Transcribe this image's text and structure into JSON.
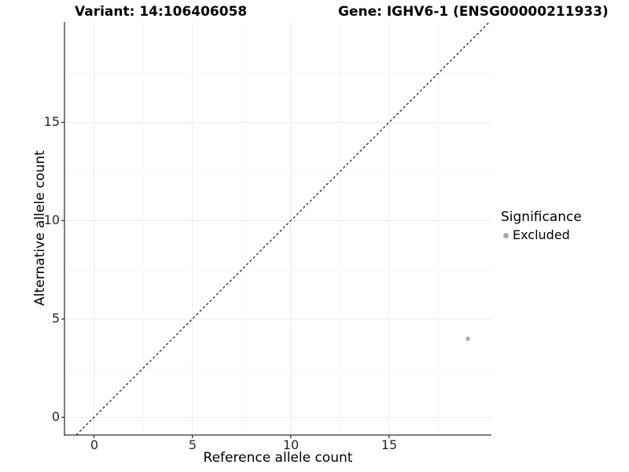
{
  "header": {
    "variant_title": "Variant: 14:106406058",
    "gene_title": "Gene: IGHV6-1 (ENSG00000211933)"
  },
  "chart_data": {
    "type": "scatter",
    "xlabel": "Reference allele count",
    "ylabel": "Alternative allele count",
    "xlim": [
      -1.5,
      20.2
    ],
    "ylim": [
      -0.9,
      20.1
    ],
    "x_ticks": [
      0,
      5,
      10,
      15
    ],
    "y_ticks": [
      0,
      5,
      10,
      15
    ],
    "minor_ticks": [
      2.5,
      7.5,
      12.5,
      17.5
    ],
    "grid": {
      "shown": true,
      "major_color": "#ececec",
      "minor_color": "#f5f5f5"
    },
    "identity_line": {
      "equation": "y = x",
      "style": "dashed",
      "color": "#000000"
    },
    "points": [
      {
        "x": 19,
        "y": 4,
        "series": "Excluded",
        "color": "#aaaaaa",
        "radius": 2.8
      }
    ],
    "legend": {
      "title": "Significance",
      "position": "right",
      "items": [
        {
          "label": "Excluded",
          "color": "#aaaaaa",
          "marker": "point-icon"
        }
      ]
    }
  },
  "colors": {
    "background": "#ffffff",
    "axis": "#333333",
    "tick_label": "#262626",
    "text": "#000000"
  }
}
